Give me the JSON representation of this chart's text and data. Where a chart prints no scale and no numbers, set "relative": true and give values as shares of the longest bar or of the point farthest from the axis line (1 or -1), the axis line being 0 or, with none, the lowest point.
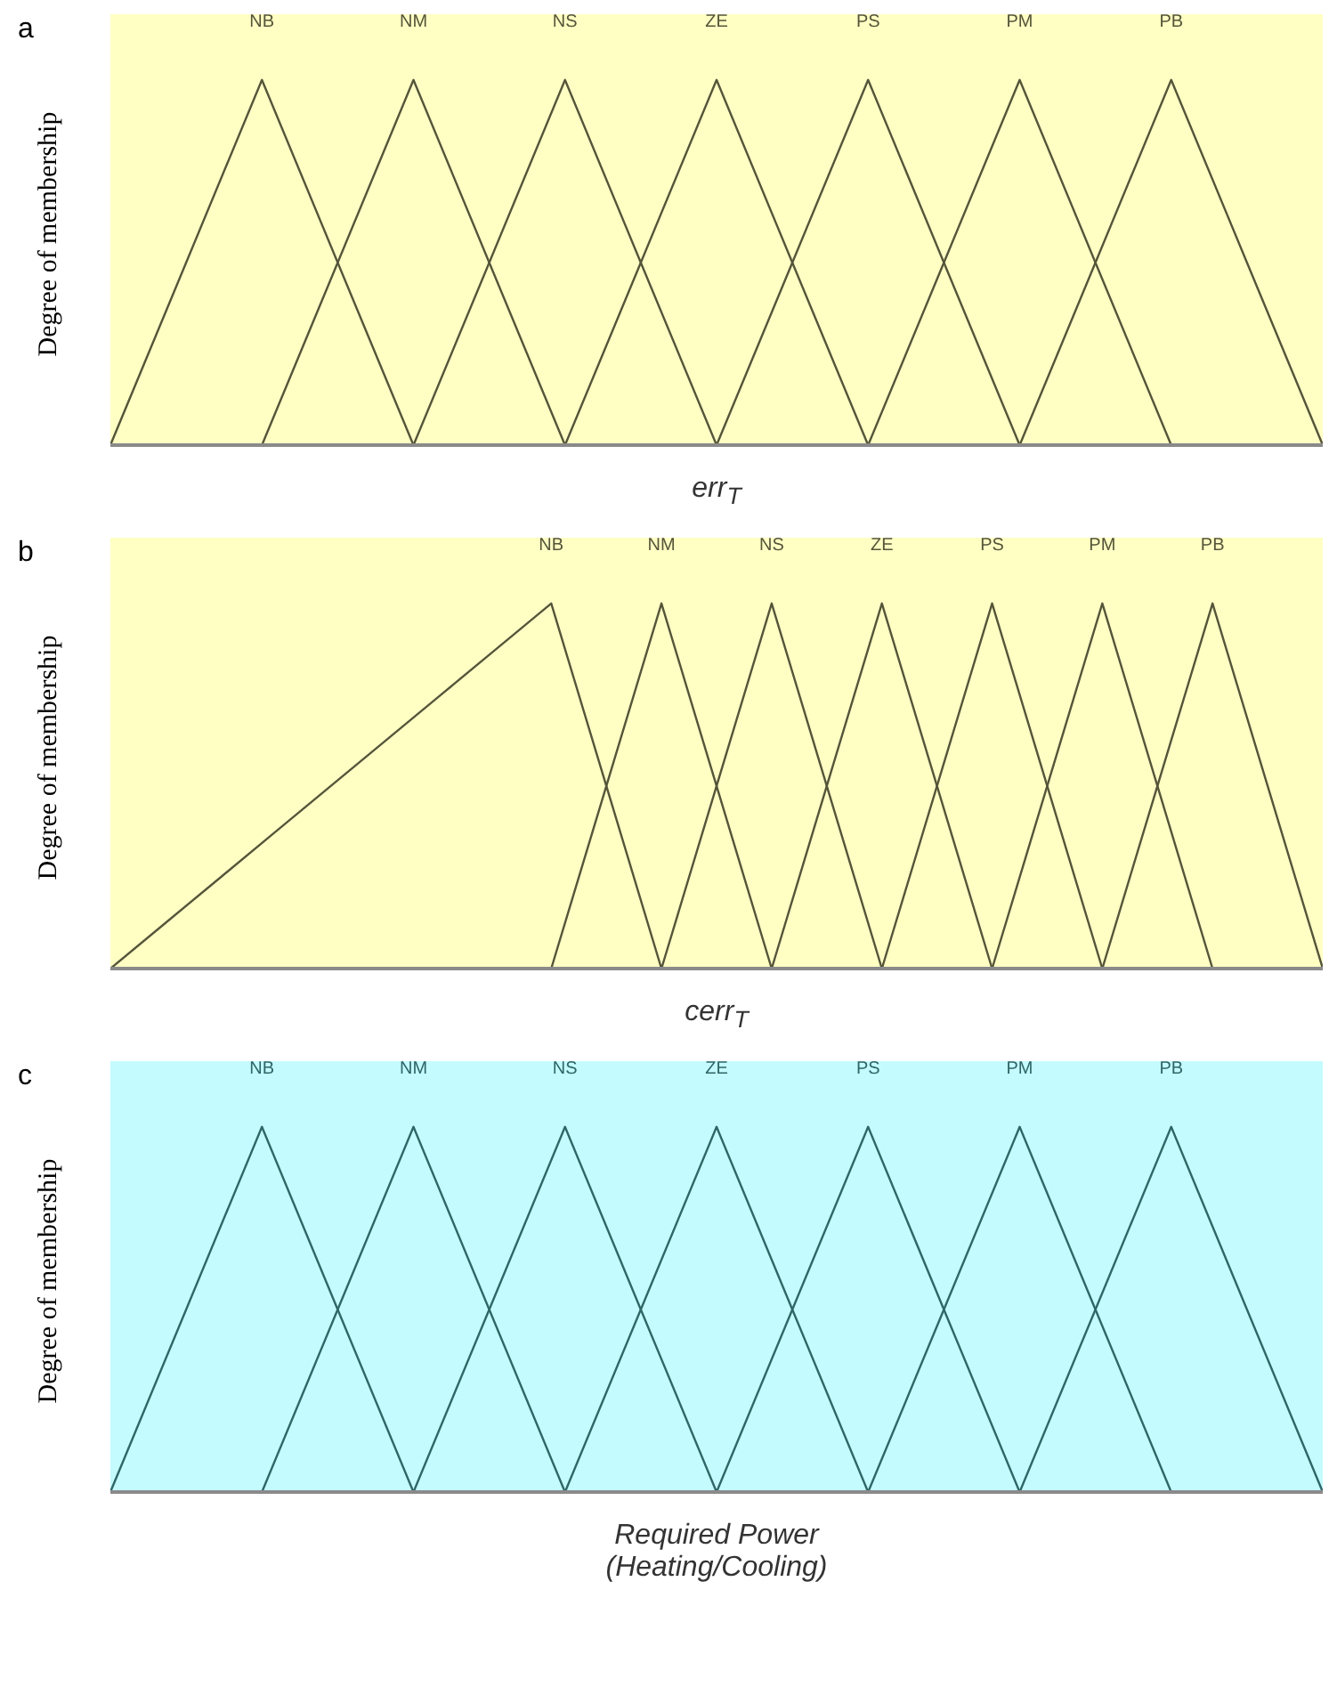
{
  "chart_data": [
    {
      "type": "line",
      "title": "a",
      "xlabel": "err$_{T}$",
      "ylabel": "Degree of membership",
      "relative": true,
      "tick_labels": false,
      "categories": [
        null,
        null,
        null,
        null,
        null,
        null,
        null,
        null,
        null,
        null,
        null,
        null,
        null,
        null,
        null,
        null,
        null
      ],
      "series": [
        {
          "name": "NB",
          "color": "#55553a",
          "values": [
            0,
            0.5,
            1,
            0.5,
            0,
            null,
            null,
            null,
            null,
            null,
            null,
            null,
            null,
            null,
            null,
            null,
            null
          ]
        },
        {
          "name": "NM",
          "color": "#55553a",
          "values": [
            null,
            null,
            0,
            0.5,
            1,
            0.5,
            0,
            null,
            null,
            null,
            null,
            null,
            null,
            null,
            null,
            null,
            null
          ]
        },
        {
          "name": "NS",
          "color": "#55553a",
          "values": [
            null,
            null,
            null,
            null,
            0,
            0.5,
            1,
            0.5,
            0,
            null,
            null,
            null,
            null,
            null,
            null,
            null,
            null
          ]
        },
        {
          "name": "ZE",
          "color": "#55553a",
          "values": [
            null,
            null,
            null,
            null,
            null,
            null,
            0,
            0.5,
            1,
            0.5,
            0,
            null,
            null,
            null,
            null,
            null,
            null
          ]
        },
        {
          "name": "PS",
          "color": "#55553a",
          "values": [
            null,
            null,
            null,
            null,
            null,
            null,
            null,
            null,
            0,
            0.5,
            1,
            0.5,
            0,
            null,
            null,
            null,
            null
          ]
        },
        {
          "name": "PM",
          "color": "#55553a",
          "values": [
            null,
            null,
            null,
            null,
            null,
            null,
            null,
            null,
            null,
            null,
            0,
            0.5,
            1,
            0.5,
            0,
            null,
            null
          ]
        },
        {
          "name": "PB",
          "color": "#55553a",
          "values": [
            null,
            null,
            null,
            null,
            null,
            null,
            null,
            null,
            null,
            null,
            null,
            null,
            0,
            0.5,
            1,
            0.5,
            0
          ]
        }
      ]
    },
    {
      "type": "line",
      "title": "b",
      "xlabel": "cerr$_{T}$",
      "ylabel": "Degree of membership",
      "relative": true,
      "tick_labels": false,
      "categories": [
        null,
        null,
        null,
        null,
        null,
        null,
        null,
        null,
        null,
        null,
        null,
        null,
        null,
        null,
        null,
        null,
        null,
        null,
        null,
        null,
        null,
        null,
        null
      ],
      "series": [
        {
          "name": "NB",
          "color": "#55553a",
          "values": [
            0,
            0.125,
            0.25,
            0.375,
            0.5,
            0.625,
            0.75,
            0.875,
            1,
            0.5,
            0,
            null,
            null,
            null,
            null,
            null,
            null,
            null,
            null,
            null,
            null,
            null,
            null
          ]
        },
        {
          "name": "NM",
          "color": "#55553a",
          "values": [
            null,
            null,
            null,
            null,
            null,
            null,
            null,
            null,
            0,
            0.5,
            1,
            0.5,
            0,
            null,
            null,
            null,
            null,
            null,
            null,
            null,
            null,
            null,
            null
          ]
        },
        {
          "name": "NS",
          "color": "#55553a",
          "values": [
            null,
            null,
            null,
            null,
            null,
            null,
            null,
            null,
            null,
            null,
            0,
            0.5,
            1,
            0.5,
            0,
            null,
            null,
            null,
            null,
            null,
            null,
            null,
            null
          ]
        },
        {
          "name": "ZE",
          "color": "#55553a",
          "values": [
            null,
            null,
            null,
            null,
            null,
            null,
            null,
            null,
            null,
            null,
            null,
            null,
            0,
            0.5,
            1,
            0.5,
            0,
            null,
            null,
            null,
            null,
            null,
            null
          ]
        },
        {
          "name": "PS",
          "color": "#55553a",
          "values": [
            null,
            null,
            null,
            null,
            null,
            null,
            null,
            null,
            null,
            null,
            null,
            null,
            null,
            null,
            0,
            0.5,
            1,
            0.5,
            0,
            null,
            null,
            null,
            null
          ]
        },
        {
          "name": "PM",
          "color": "#55553a",
          "values": [
            null,
            null,
            null,
            null,
            null,
            null,
            null,
            null,
            null,
            null,
            null,
            null,
            null,
            null,
            null,
            null,
            0,
            0.5,
            1,
            0.5,
            0,
            null,
            null
          ]
        },
        {
          "name": "PB",
          "color": "#55553a",
          "values": [
            null,
            null,
            null,
            null,
            null,
            null,
            null,
            null,
            null,
            null,
            null,
            null,
            null,
            null,
            null,
            null,
            null,
            null,
            0,
            0.5,
            1,
            0.5,
            0
          ]
        }
      ]
    },
    {
      "type": "line",
      "title": "c",
      "xlabel": "Required Power (Heating/Cooling)",
      "ylabel": "Degree of membership",
      "relative": true,
      "tick_labels": false,
      "categories": [
        null,
        null,
        null,
        null,
        null,
        null,
        null,
        null,
        null,
        null,
        null,
        null,
        null,
        null,
        null,
        null,
        null
      ],
      "series": [
        {
          "name": "NB",
          "color": "#2f6666",
          "values": [
            0,
            0.5,
            1,
            0.5,
            0,
            null,
            null,
            null,
            null,
            null,
            null,
            null,
            null,
            null,
            null,
            null,
            null
          ]
        },
        {
          "name": "NM",
          "color": "#2f6666",
          "values": [
            null,
            null,
            0,
            0.5,
            1,
            0.5,
            0,
            null,
            null,
            null,
            null,
            null,
            null,
            null,
            null,
            null,
            null
          ]
        },
        {
          "name": "NS",
          "color": "#2f6666",
          "values": [
            null,
            null,
            null,
            null,
            0,
            0.5,
            1,
            0.5,
            0,
            null,
            null,
            null,
            null,
            null,
            null,
            null,
            null
          ]
        },
        {
          "name": "ZE",
          "color": "#2f6666",
          "values": [
            null,
            null,
            null,
            null,
            null,
            null,
            0,
            0.5,
            1,
            0.5,
            0,
            null,
            null,
            null,
            null,
            null,
            null
          ]
        },
        {
          "name": "PS",
          "color": "#2f6666",
          "values": [
            null,
            null,
            null,
            null,
            null,
            null,
            null,
            null,
            0,
            0.5,
            1,
            0.5,
            0,
            null,
            null,
            null,
            null
          ]
        },
        {
          "name": "PM",
          "color": "#2f6666",
          "values": [
            null,
            null,
            null,
            null,
            null,
            null,
            null,
            null,
            null,
            null,
            0,
            0.5,
            1,
            0.5,
            0,
            null,
            null
          ]
        },
        {
          "name": "PB",
          "color": "#2f6666",
          "values": [
            null,
            null,
            null,
            null,
            null,
            null,
            null,
            null,
            null,
            null,
            null,
            null,
            0,
            0.5,
            1,
            0.5,
            0
          ]
        }
      ]
    }
  ]
}
